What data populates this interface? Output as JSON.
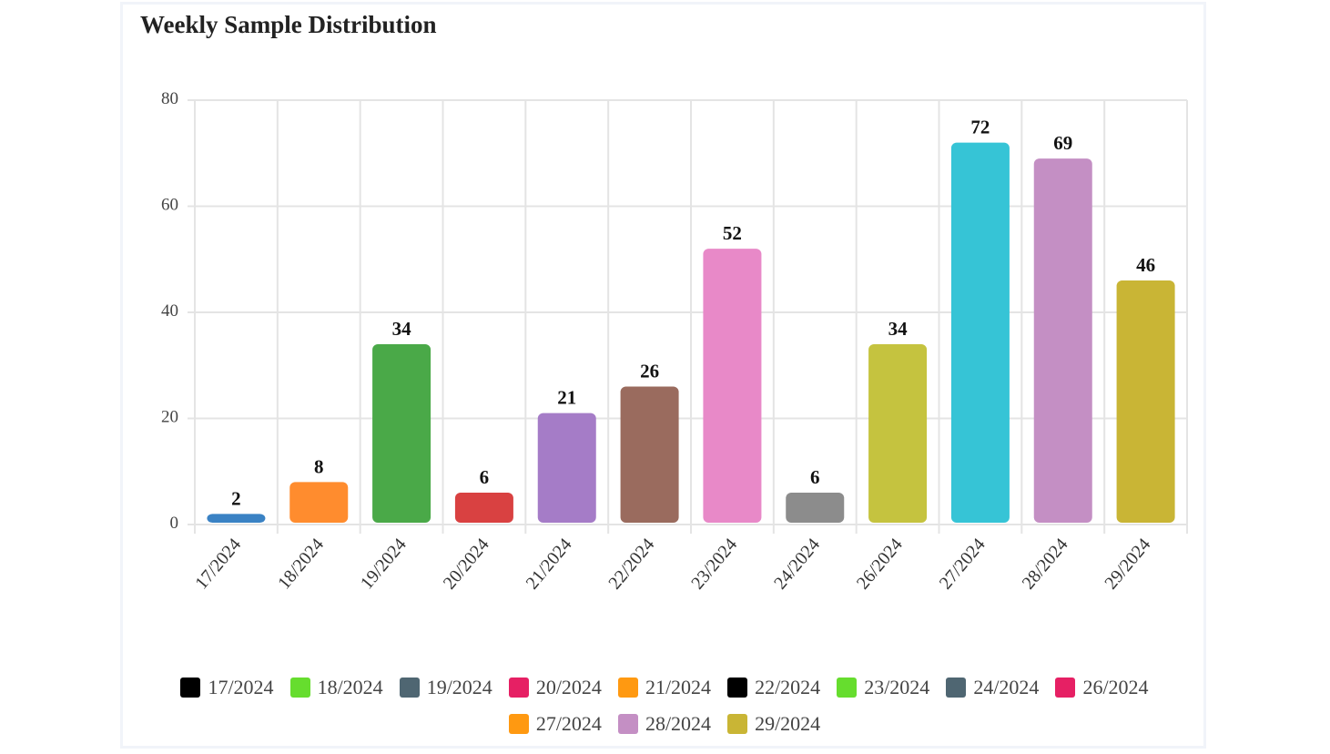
{
  "chart_data": {
    "type": "bar",
    "title": "Weekly Sample Distribution",
    "xlabel": "",
    "ylabel": "",
    "ylim": [
      0,
      80
    ],
    "yticks": [
      "0",
      "20",
      "40",
      "60",
      "80"
    ],
    "categories": [
      "17/2024",
      "18/2024",
      "19/2024",
      "20/2024",
      "21/2024",
      "22/2024",
      "23/2024",
      "24/2024",
      "26/2024",
      "27/2024",
      "28/2024",
      "29/2024"
    ],
    "values": [
      2,
      8,
      34,
      6,
      21,
      26,
      52,
      6,
      34,
      72,
      69,
      46
    ],
    "data_labels": [
      "2",
      "8",
      "34",
      "6",
      "21",
      "26",
      "52",
      "6",
      "34",
      "72",
      "69",
      "46"
    ],
    "bar_colors": [
      "#3a82c4",
      "#ff8c2e",
      "#4aa948",
      "#d94141",
      "#a57cc7",
      "#9a6b5e",
      "#e889c8",
      "#8c8c8c",
      "#c5c33f",
      "#36c4d6",
      "#c48fc4",
      "#c9b535"
    ],
    "legend": {
      "position": "bottom",
      "entries": [
        {
          "label": "17/2024",
          "color": "#000000"
        },
        {
          "label": "18/2024",
          "color": "#66dd2e"
        },
        {
          "label": "19/2024",
          "color": "#4f6672"
        },
        {
          "label": "20/2024",
          "color": "#e62064"
        },
        {
          "label": "21/2024",
          "color": "#ff9911"
        },
        {
          "label": "22/2024",
          "color": "#000000"
        },
        {
          "label": "23/2024",
          "color": "#66dd2e"
        },
        {
          "label": "24/2024",
          "color": "#4f6672"
        },
        {
          "label": "26/2024",
          "color": "#e62064"
        },
        {
          "label": "27/2024",
          "color": "#ff9911"
        },
        {
          "label": "28/2024",
          "color": "#c48fc4"
        },
        {
          "label": "29/2024",
          "color": "#c9b535"
        }
      ]
    },
    "grid": true
  }
}
